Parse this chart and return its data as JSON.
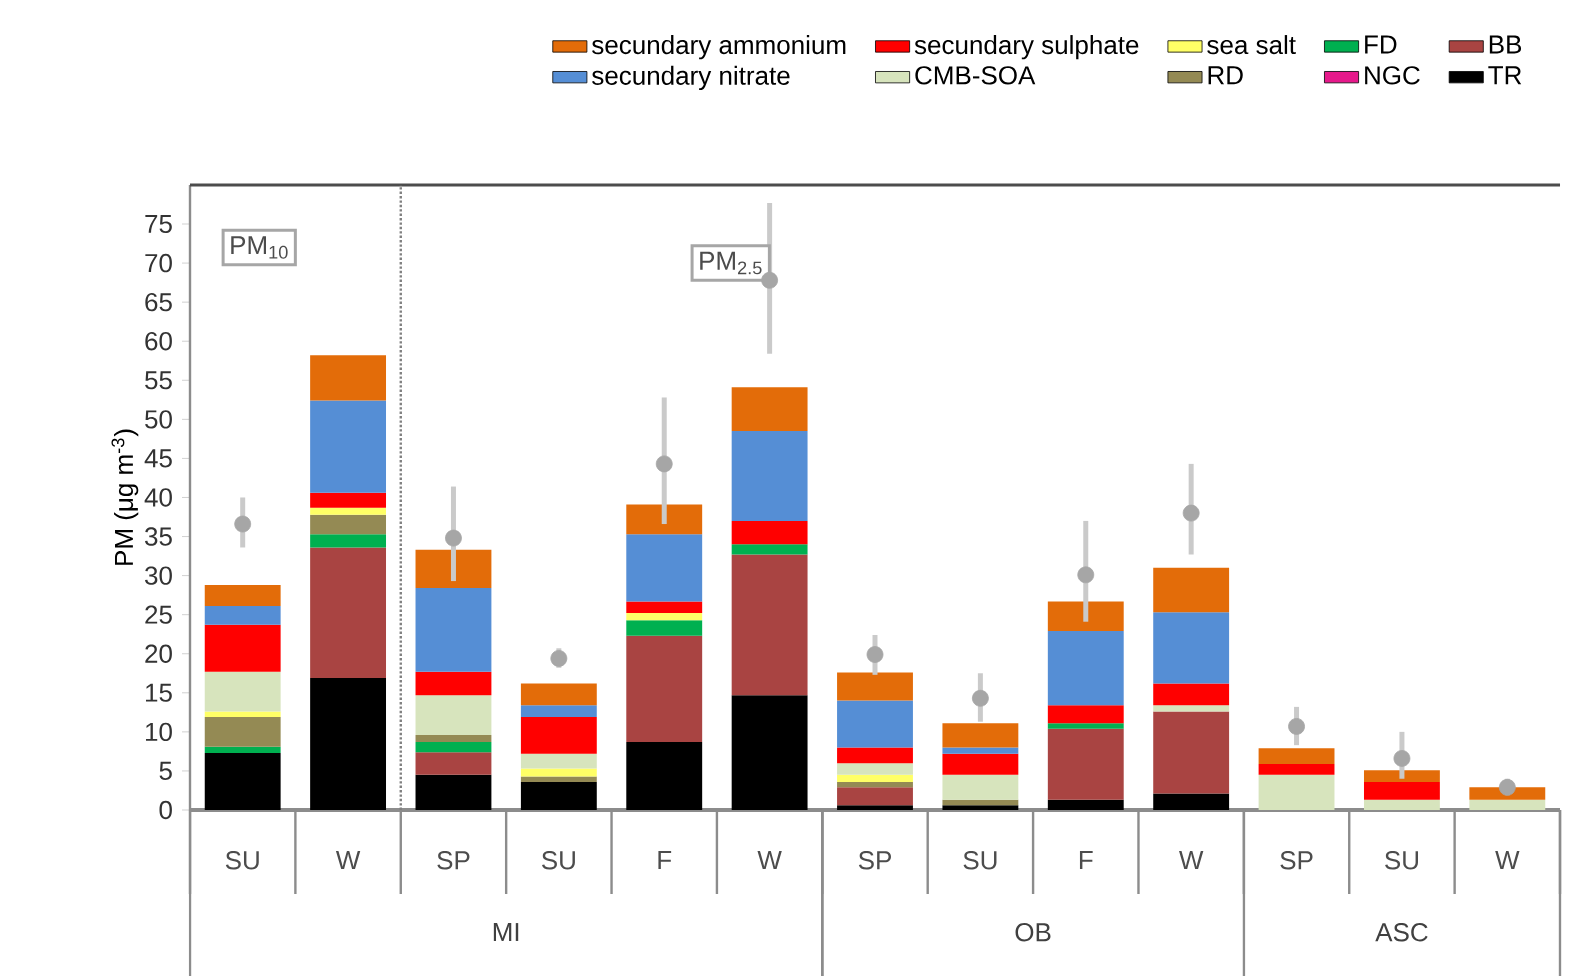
{
  "chart_data": {
    "type": "bar",
    "stacked": true,
    "ylabel": "PM (μg m$^{-3}$)",
    "categories": [
      "SU",
      "W",
      "SP",
      "SU",
      "F",
      "W",
      "SP",
      "SU",
      "F",
      "W",
      "SP",
      "SU",
      "W"
    ],
    "annotations": [
      "PM$_{10}$",
      "PM$_{2.5}$",
      "MI",
      "OB",
      "ASC"
    ],
    "ylim": [
      0,
      80
    ],
    "yticks": [
      0,
      5,
      10,
      15,
      20,
      25,
      30,
      35,
      40,
      45,
      50,
      55,
      60,
      65,
      70,
      75
    ],
    "legend": "top",
    "grid": false,
    "series": [
      {
        "name": "TR",
        "color": "#000000",
        "values": [
          7.3,
          16.9,
          4.5,
          3.6,
          8.7,
          14.7,
          0.6,
          0.6,
          1.3,
          2.1,
          null,
          null,
          null
        ]
      },
      {
        "name": "BB",
        "color": "#a94442",
        "values": [
          null,
          16.7,
          2.9,
          null,
          13.6,
          18.0,
          2.3,
          null,
          9.1,
          10.5,
          null,
          null,
          null
        ]
      },
      {
        "name": "NGC",
        "color": "#e6198b",
        "values": [
          null,
          null,
          null,
          null,
          null,
          null,
          null,
          null,
          null,
          null,
          null,
          null,
          null
        ]
      },
      {
        "name": "FD",
        "color": "#00b050",
        "values": [
          0.8,
          1.7,
          1.3,
          null,
          2.0,
          1.3,
          null,
          null,
          0.7,
          null,
          null,
          null,
          null
        ]
      },
      {
        "name": "RD",
        "color": "#948a54",
        "values": [
          3.8,
          2.5,
          0.9,
          0.7,
          null,
          null,
          0.7,
          0.7,
          null,
          null,
          null,
          null,
          null
        ]
      },
      {
        "name": "sea salt",
        "color": "#ffff66",
        "values": [
          0.7,
          0.9,
          null,
          1.0,
          0.9,
          null,
          0.9,
          null,
          null,
          null,
          null,
          null,
          null
        ]
      },
      {
        "name": "CMB-SOA",
        "color": "#d7e4bd",
        "values": [
          5.1,
          null,
          5.1,
          1.9,
          null,
          null,
          1.5,
          3.2,
          null,
          0.8,
          4.5,
          1.3,
          1.3
        ]
      },
      {
        "name": "secundary sulphate",
        "color": "#ff0000",
        "values": [
          6.0,
          1.9,
          3.0,
          4.7,
          1.5,
          3.0,
          2.0,
          2.7,
          2.3,
          2.8,
          1.4,
          2.3,
          null
        ]
      },
      {
        "name": "secundary nitrate",
        "color": "#558ed5",
        "values": [
          2.4,
          11.8,
          10.7,
          1.5,
          8.6,
          11.5,
          6.0,
          0.8,
          9.5,
          9.1,
          null,
          null,
          null
        ]
      },
      {
        "name": "secundary ammonium",
        "color": "#e36c09",
        "values": [
          2.7,
          5.8,
          4.9,
          2.8,
          3.8,
          5.6,
          3.6,
          3.1,
          3.8,
          5.7,
          2.0,
          1.5,
          1.6
        ]
      },
      {
        "type": "scatter",
        "marker": "circle",
        "color": "#a6a6a6",
        "values": [
          36.6,
          null,
          34.8,
          19.4,
          44.3,
          67.8,
          19.9,
          14.3,
          30.1,
          38.0,
          10.7,
          6.6,
          2.9
        ],
        "errors": [
          [
            33.6,
            40.0
          ],
          null,
          [
            29.3,
            41.4
          ],
          [
            18.2,
            20.7
          ],
          [
            36.6,
            52.8
          ],
          [
            58.4,
            77.7
          ],
          [
            17.3,
            22.4
          ],
          [
            11.3,
            17.5
          ],
          [
            24.1,
            37.0
          ],
          [
            32.7,
            44.3
          ],
          [
            8.3,
            13.2
          ],
          [
            4.0,
            10.0
          ],
          [
            1.9,
            4.0
          ]
        ]
      }
    ]
  }
}
